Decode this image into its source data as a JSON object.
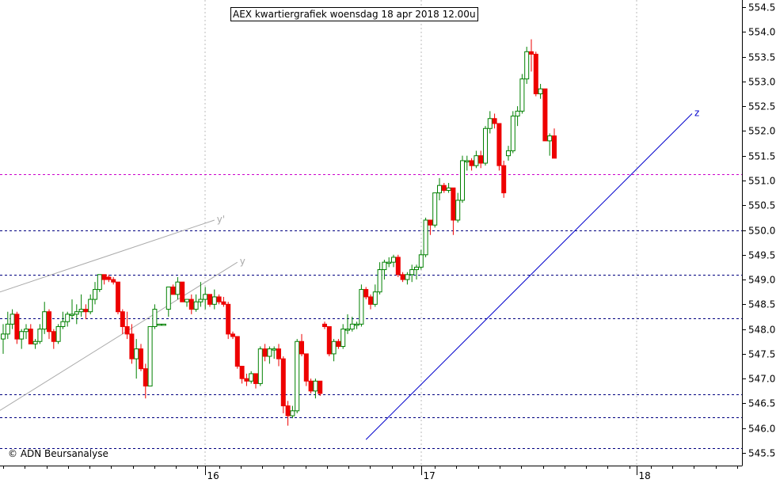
{
  "chart_data": {
    "type": "candlestick",
    "title": "AEX kwartiergrafiek woensdag 18 apr 2018 12.00u",
    "credit": "© ADN Beursanalyse",
    "ylim": [
      545.5,
      554.5
    ],
    "y_ticks": [
      "554.5",
      "554.0",
      "553.5",
      "553.0",
      "552.5",
      "552.0",
      "551.5",
      "551.0",
      "550.5",
      "550.0",
      "549.5",
      "549.0",
      "548.5",
      "548.0",
      "547.5",
      "547.0",
      "546.5",
      "546.0",
      "545.5"
    ],
    "x_day_labels": [
      {
        "label": "16",
        "index": 44
      },
      {
        "label": "17",
        "index": 91
      },
      {
        "label": "18",
        "index": 138
      }
    ],
    "horizontal_levels": [
      {
        "value": 551.12,
        "color": "#cc00cc"
      },
      {
        "value": 550.0,
        "color": "#000080"
      },
      {
        "value": 549.1,
        "color": "#000080"
      },
      {
        "value": 548.22,
        "color": "#000080"
      },
      {
        "value": 546.68,
        "color": "#000080"
      },
      {
        "value": 546.22,
        "color": "#000080"
      },
      {
        "value": 545.6,
        "color": "#000080"
      }
    ],
    "trendlines": [
      {
        "from": [
          -1,
          548.74
        ],
        "to": [
          46,
          550.2
        ],
        "color": "#aaaaaa",
        "label": "y'"
      },
      {
        "from": [
          -1,
          546.34
        ],
        "to": [
          51,
          549.35
        ],
        "color": "#aaaaaa",
        "label": "y"
      },
      {
        "from": [
          79,
          545.77
        ],
        "to": [
          150,
          552.35
        ],
        "color": "#0000cc",
        "label": "z"
      }
    ],
    "candles": [
      [
        547.8,
        548.1,
        547.5,
        547.9
      ],
      [
        547.9,
        548.35,
        547.8,
        548.1
      ],
      [
        548.1,
        548.4,
        548.0,
        548.3
      ],
      [
        548.3,
        548.35,
        547.7,
        547.8
      ],
      [
        547.8,
        548.0,
        547.6,
        547.95
      ],
      [
        547.95,
        548.1,
        547.8,
        548.0
      ],
      [
        548.0,
        548.1,
        547.7,
        547.7
      ],
      [
        547.7,
        547.8,
        547.6,
        547.75
      ],
      [
        547.75,
        548.1,
        547.7,
        548.0
      ],
      [
        548.0,
        548.55,
        547.9,
        548.35
      ],
      [
        548.35,
        548.4,
        547.8,
        547.95
      ],
      [
        547.95,
        548.0,
        547.6,
        547.75
      ],
      [
        547.75,
        548.1,
        547.7,
        548.05
      ],
      [
        548.05,
        548.35,
        548.0,
        548.15
      ],
      [
        548.15,
        548.35,
        548.05,
        548.3
      ],
      [
        548.3,
        548.6,
        548.2,
        548.3
      ],
      [
        548.3,
        548.5,
        548.1,
        548.35
      ],
      [
        548.35,
        548.7,
        548.25,
        548.4
      ],
      [
        548.4,
        548.5,
        548.2,
        548.35
      ],
      [
        548.35,
        548.7,
        548.3,
        548.6
      ],
      [
        548.6,
        548.95,
        548.5,
        548.8
      ],
      [
        548.8,
        549.1,
        548.75,
        549.1
      ],
      [
        549.1,
        549.1,
        548.9,
        549.0
      ],
      [
        549.05,
        549.1,
        548.95,
        549.0
      ],
      [
        549.0,
        549.05,
        548.9,
        548.95
      ],
      [
        548.95,
        548.95,
        548.3,
        548.35
      ],
      [
        548.35,
        548.4,
        547.9,
        548.05
      ],
      [
        548.05,
        548.35,
        547.8,
        547.9
      ],
      [
        547.9,
        548.1,
        547.3,
        547.4
      ],
      [
        547.4,
        547.8,
        547.0,
        547.6
      ],
      [
        547.6,
        547.7,
        547.15,
        547.2
      ],
      [
        547.2,
        547.3,
        546.6,
        546.85
      ],
      [
        546.85,
        548.05,
        546.9,
        548.05
      ],
      [
        548.05,
        548.5,
        548.0,
        548.4
      ],
      [
        548.1,
        548.1,
        548.1,
        548.1
      ],
      [
        548.1,
        548.1,
        548.1,
        548.1
      ],
      [
        548.4,
        548.85,
        548.25,
        548.85
      ],
      [
        548.85,
        548.9,
        548.7,
        548.7
      ],
      [
        548.7,
        549.05,
        548.6,
        548.95
      ],
      [
        548.95,
        548.95,
        548.55,
        548.55
      ],
      [
        548.55,
        548.6,
        548.45,
        548.6
      ],
      [
        548.6,
        548.7,
        548.3,
        548.4
      ],
      [
        548.4,
        548.7,
        548.35,
        548.55
      ],
      [
        548.55,
        548.95,
        548.45,
        548.6
      ],
      [
        548.6,
        548.85,
        548.4,
        548.7
      ],
      [
        548.7,
        548.7,
        548.45,
        548.5
      ],
      [
        548.5,
        548.8,
        548.4,
        548.65
      ],
      [
        548.65,
        548.7,
        548.5,
        548.55
      ],
      [
        548.55,
        548.65,
        548.45,
        548.5
      ],
      [
        548.5,
        548.55,
        547.8,
        547.9
      ],
      [
        547.9,
        547.95,
        547.8,
        547.85
      ],
      [
        547.85,
        547.85,
        547.2,
        547.25
      ],
      [
        547.25,
        547.25,
        546.9,
        547.0
      ],
      [
        547.0,
        547.1,
        546.85,
        546.95
      ],
      [
        546.95,
        547.15,
        546.9,
        547.1
      ],
      [
        547.1,
        547.1,
        546.8,
        546.9
      ],
      [
        546.9,
        547.65,
        546.85,
        547.6
      ],
      [
        547.6,
        547.7,
        547.35,
        547.45
      ],
      [
        547.45,
        547.65,
        547.3,
        547.6
      ],
      [
        547.6,
        547.65,
        547.4,
        547.6
      ],
      [
        547.6,
        547.7,
        547.25,
        547.4
      ],
      [
        547.4,
        547.45,
        546.3,
        546.45
      ],
      [
        546.45,
        546.55,
        546.05,
        546.25
      ],
      [
        546.25,
        546.45,
        546.2,
        546.35
      ],
      [
        546.35,
        547.8,
        546.3,
        547.75
      ],
      [
        547.75,
        547.9,
        547.45,
        547.5
      ],
      [
        547.5,
        547.5,
        546.85,
        546.95
      ],
      [
        546.95,
        547.0,
        546.7,
        546.75
      ],
      [
        546.75,
        547.0,
        546.6,
        546.95
      ],
      [
        546.95,
        546.95,
        546.65,
        546.7
      ],
      [
        548.1,
        548.15,
        548.0,
        548.05
      ],
      [
        548.05,
        548.05,
        547.45,
        547.5
      ],
      [
        547.5,
        547.8,
        547.35,
        547.75
      ],
      [
        547.75,
        547.8,
        547.6,
        547.65
      ],
      [
        547.65,
        548.1,
        547.6,
        548.0
      ],
      [
        548.0,
        548.3,
        547.9,
        548.0
      ],
      [
        548.0,
        548.25,
        547.95,
        548.1
      ],
      [
        548.1,
        548.15,
        548.0,
        548.1
      ],
      [
        548.1,
        548.9,
        548.05,
        548.8
      ],
      [
        548.8,
        548.85,
        548.6,
        548.65
      ],
      [
        548.65,
        548.7,
        548.4,
        548.5
      ],
      [
        548.5,
        548.9,
        548.45,
        548.75
      ],
      [
        548.75,
        549.35,
        548.7,
        549.2
      ],
      [
        549.2,
        549.4,
        549.0,
        549.35
      ],
      [
        549.35,
        549.45,
        549.25,
        549.35
      ],
      [
        549.35,
        549.5,
        549.25,
        549.45
      ],
      [
        549.45,
        549.5,
        549.05,
        549.1
      ],
      [
        549.1,
        549.15,
        548.95,
        549.0
      ],
      [
        549.0,
        549.15,
        548.9,
        549.1
      ],
      [
        549.1,
        549.3,
        548.95,
        549.2
      ],
      [
        549.2,
        549.3,
        549.0,
        549.25
      ],
      [
        549.25,
        549.6,
        549.2,
        549.5
      ],
      [
        549.5,
        550.25,
        549.45,
        550.2
      ],
      [
        550.2,
        550.2,
        549.9,
        550.1
      ],
      [
        550.1,
        550.75,
        550.05,
        550.75
      ],
      [
        550.75,
        551.05,
        550.6,
        550.9
      ],
      [
        550.9,
        550.95,
        550.75,
        550.8
      ],
      [
        550.8,
        550.95,
        550.75,
        550.85
      ],
      [
        550.85,
        550.85,
        549.9,
        550.2
      ],
      [
        550.2,
        550.75,
        550.15,
        550.6
      ],
      [
        550.6,
        551.5,
        550.55,
        551.4
      ],
      [
        551.4,
        551.5,
        551.2,
        551.4
      ],
      [
        551.4,
        551.45,
        551.2,
        551.3
      ],
      [
        551.3,
        551.6,
        551.25,
        551.5
      ],
      [
        551.5,
        551.6,
        551.25,
        551.35
      ],
      [
        551.35,
        552.1,
        551.3,
        552.05
      ],
      [
        552.05,
        552.4,
        551.95,
        552.25
      ],
      [
        552.25,
        552.35,
        552.05,
        552.15
      ],
      [
        552.15,
        552.15,
        551.2,
        551.3
      ],
      [
        551.3,
        551.4,
        550.65,
        550.75
      ],
      [
        551.5,
        551.7,
        551.4,
        551.6
      ],
      [
        551.6,
        552.4,
        551.55,
        552.3
      ],
      [
        552.3,
        552.5,
        552.1,
        552.4
      ],
      [
        552.4,
        553.15,
        552.35,
        553.05
      ],
      [
        553.05,
        553.7,
        552.95,
        553.6
      ],
      [
        553.6,
        553.85,
        553.2,
        553.55
      ],
      [
        553.55,
        553.6,
        552.7,
        552.75
      ],
      [
        552.75,
        552.95,
        552.65,
        552.85
      ],
      [
        552.85,
        552.85,
        551.8,
        551.8
      ],
      [
        551.8,
        551.95,
        551.5,
        551.9
      ],
      [
        551.9,
        552.05,
        551.45,
        551.45
      ]
    ]
  }
}
